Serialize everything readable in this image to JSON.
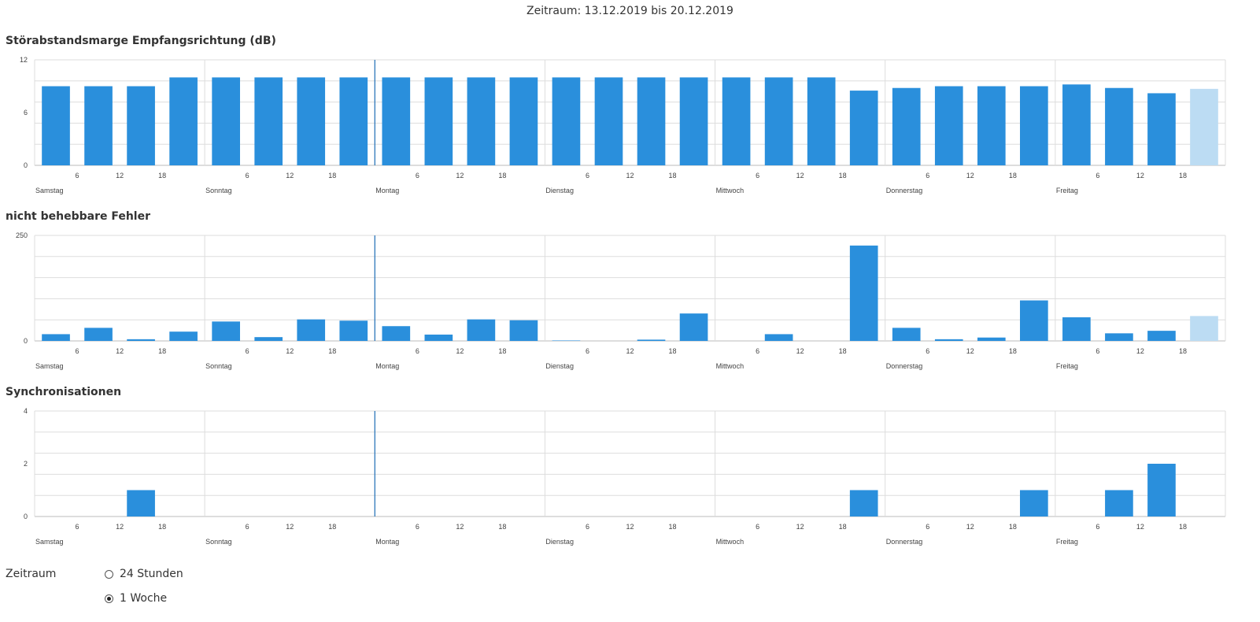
{
  "period_title": "Zeitraum: 13.12.2019 bis 20.12.2019",
  "colors": {
    "bar": "#2a8fdc",
    "bar_current": "#bcdcf3",
    "grid": "#dddddd",
    "now_marker": "#1f6fb8"
  },
  "days": [
    "Samstag",
    "Sonntag",
    "Montag",
    "Dienstag",
    "Mittwoch",
    "Donnerstag",
    "Freitag"
  ],
  "hour_ticks": [
    "6",
    "12",
    "18"
  ],
  "now_marker_day_index": 2,
  "chart_data": [
    {
      "type": "bar",
      "title": "Störabstandsmarge Empfangsrichtung (dB)",
      "ylim": [
        0,
        12
      ],
      "yticks": [
        "0",
        "6",
        "12"
      ],
      "grid": true,
      "bars_per_day": 4,
      "values": [
        9,
        9,
        9,
        10,
        10,
        10,
        10,
        10,
        10,
        10,
        10,
        10,
        10,
        10,
        10,
        10,
        10,
        10,
        10,
        8.5,
        8.8,
        9,
        9,
        9,
        9.2,
        8.8,
        8.2,
        8.7
      ],
      "last_bar_current": true
    },
    {
      "type": "bar",
      "title": "nicht behebbare Fehler",
      "ylim": [
        0,
        250
      ],
      "yticks": [
        "0",
        "250"
      ],
      "grid": true,
      "bars_per_day": 4,
      "values": [
        16,
        31,
        4,
        22,
        46,
        9,
        51,
        48,
        35,
        15,
        51,
        49,
        1,
        0,
        3,
        65,
        0,
        16,
        0,
        226,
        31,
        4,
        8,
        96,
        56,
        18,
        24,
        59
      ],
      "last_bar_current": true
    },
    {
      "type": "bar",
      "title": "Synchronisationen",
      "ylim": [
        0,
        4
      ],
      "yticks": [
        "0",
        "2",
        "4"
      ],
      "grid": true,
      "bars_per_day": 4,
      "values": [
        0,
        0,
        1,
        0,
        0,
        0,
        0,
        0,
        0,
        0,
        0,
        0,
        0,
        0,
        0,
        0,
        0,
        0,
        0,
        1,
        0,
        0,
        0,
        1,
        0,
        1,
        2,
        0
      ],
      "last_bar_current": false
    }
  ],
  "period_control": {
    "label": "Zeitraum",
    "options": [
      {
        "label": "24 Stunden",
        "checked": false
      },
      {
        "label": "1 Woche",
        "checked": true
      }
    ]
  }
}
